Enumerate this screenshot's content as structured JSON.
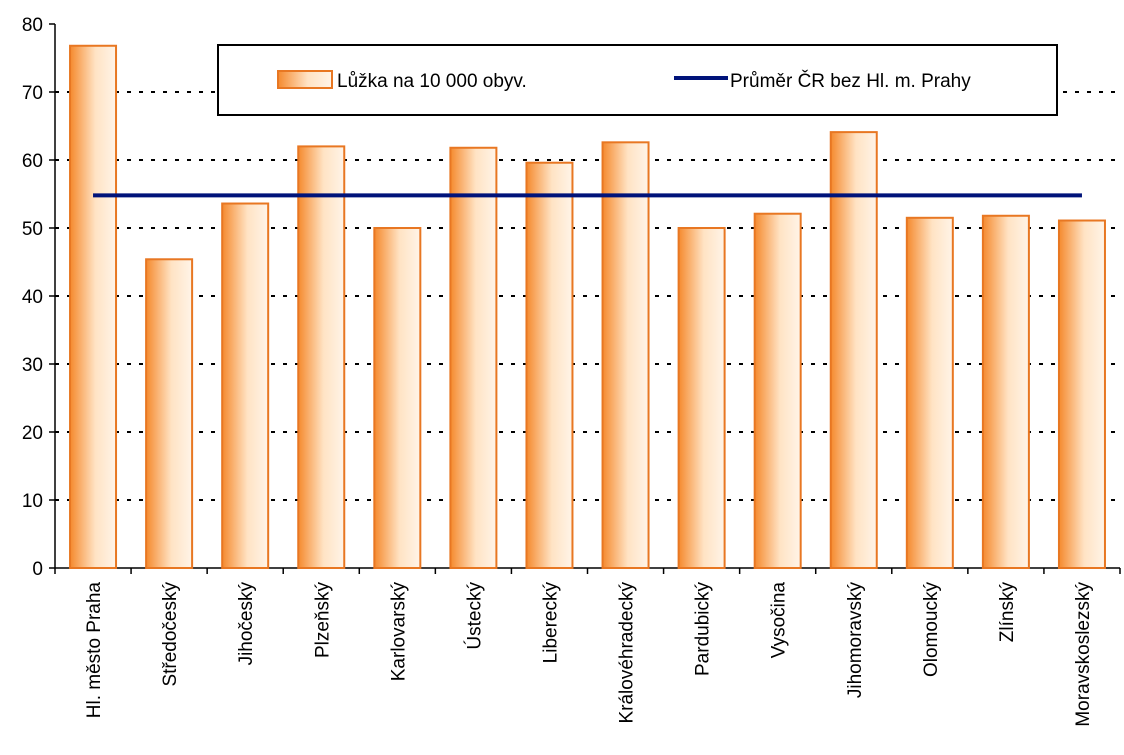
{
  "chart_data": {
    "type": "bar",
    "categories": [
      "Hl. město Praha",
      "Středočeský",
      "Jihočeský",
      "Plzeňský",
      "Karlovarský",
      "Ústecký",
      "Liberecký",
      "Královéhradecký",
      "Pardubický",
      "Vysočina",
      "Jihomoravský",
      "Olomoucký",
      "Zlínský",
      "Moravskoslezský"
    ],
    "series": [
      {
        "name": "Lůžka na 10 000 obyv.",
        "type": "bar",
        "values": [
          76.8,
          45.4,
          53.6,
          62.0,
          50.0,
          61.8,
          59.6,
          62.6,
          50.0,
          52.1,
          64.1,
          51.5,
          51.8,
          51.1
        ]
      },
      {
        "name": "Průměr ČR bez Hl. m. Prahy",
        "type": "line",
        "value": 54.8
      }
    ],
    "ylim": [
      0,
      80
    ],
    "yticks": [
      0,
      10,
      20,
      30,
      40,
      50,
      60,
      70,
      80
    ],
    "grid": "dashed horizontal",
    "legend_position": "top",
    "colors": {
      "bar_edge": "#E87722",
      "bar_fill_dark": "#F58A2E",
      "bar_fill_light": "#FFE3C4",
      "average_line": "#00137A"
    }
  }
}
